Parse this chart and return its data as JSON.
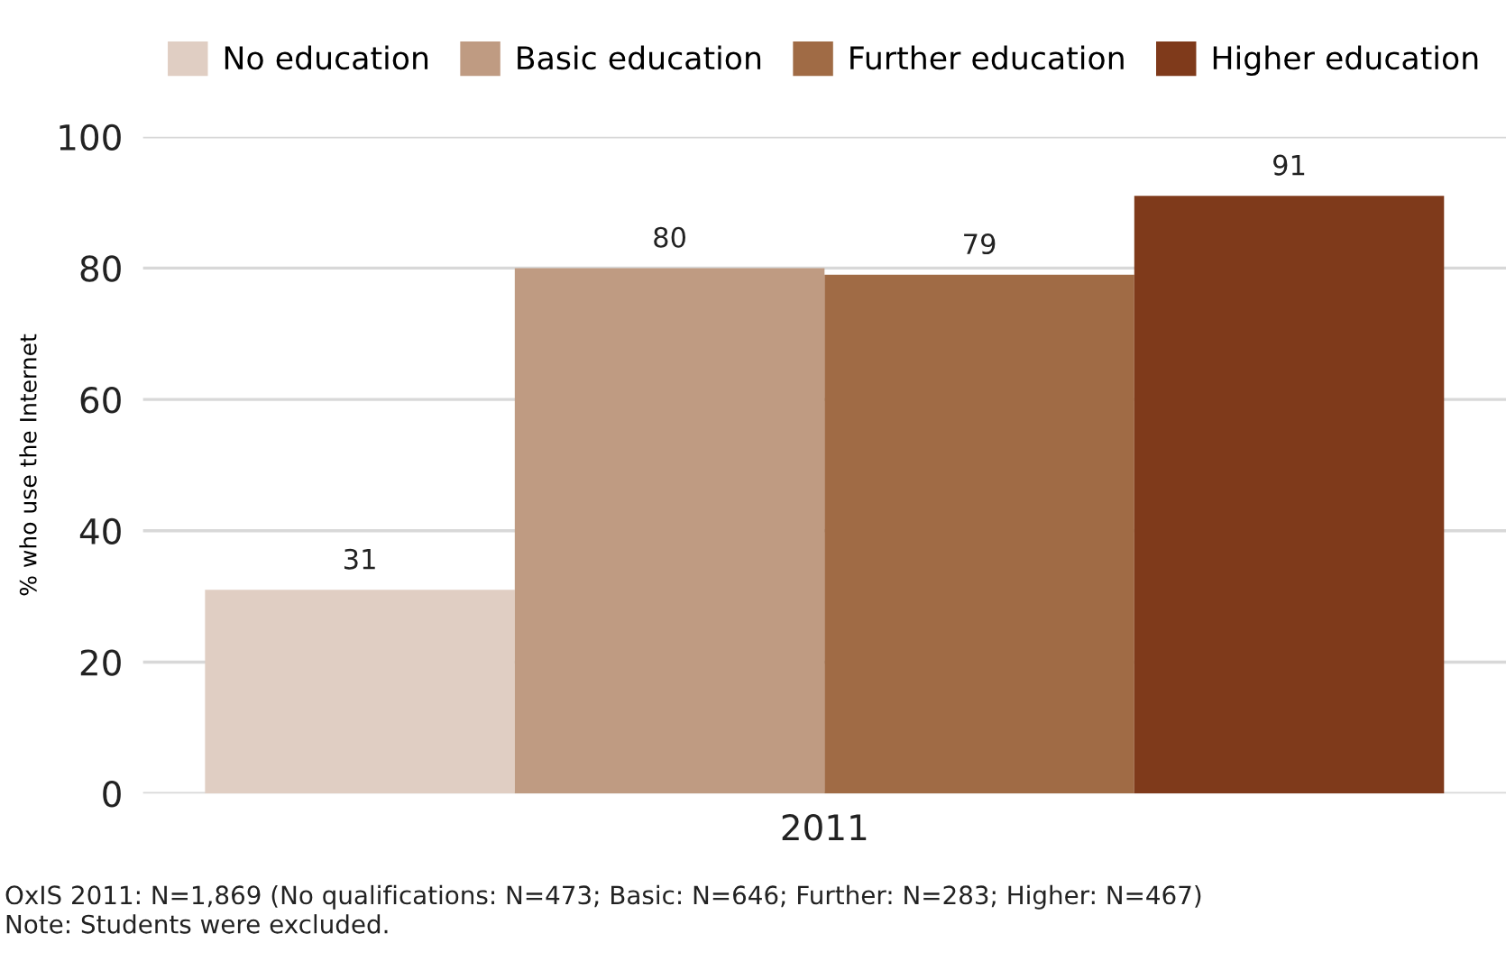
{
  "chart_data": {
    "type": "bar",
    "categories": [
      "2011"
    ],
    "ylabel": "% who use the Internet",
    "series": [
      {
        "name": "No education",
        "color": "#e0cec3",
        "values": [
          31
        ]
      },
      {
        "name": "Basic education",
        "color": "#bf9b82",
        "values": [
          80
        ]
      },
      {
        "name": "Further education",
        "color": "#a06b45",
        "values": [
          79
        ]
      },
      {
        "name": "Higher education",
        "color": "#7f3a1b",
        "values": [
          91
        ]
      }
    ],
    "ylim": [
      0,
      100
    ],
    "yticks": [
      0,
      20,
      40,
      60,
      80,
      100
    ],
    "grid": "y",
    "legend": "top",
    "data_labels": true,
    "annotations": [
      "OxIS 2011: N=1,869 (No qualifications: N=473; Basic: N=646; Further: N=283; Higher: N=467)",
      "Note: Students were excluded."
    ]
  }
}
